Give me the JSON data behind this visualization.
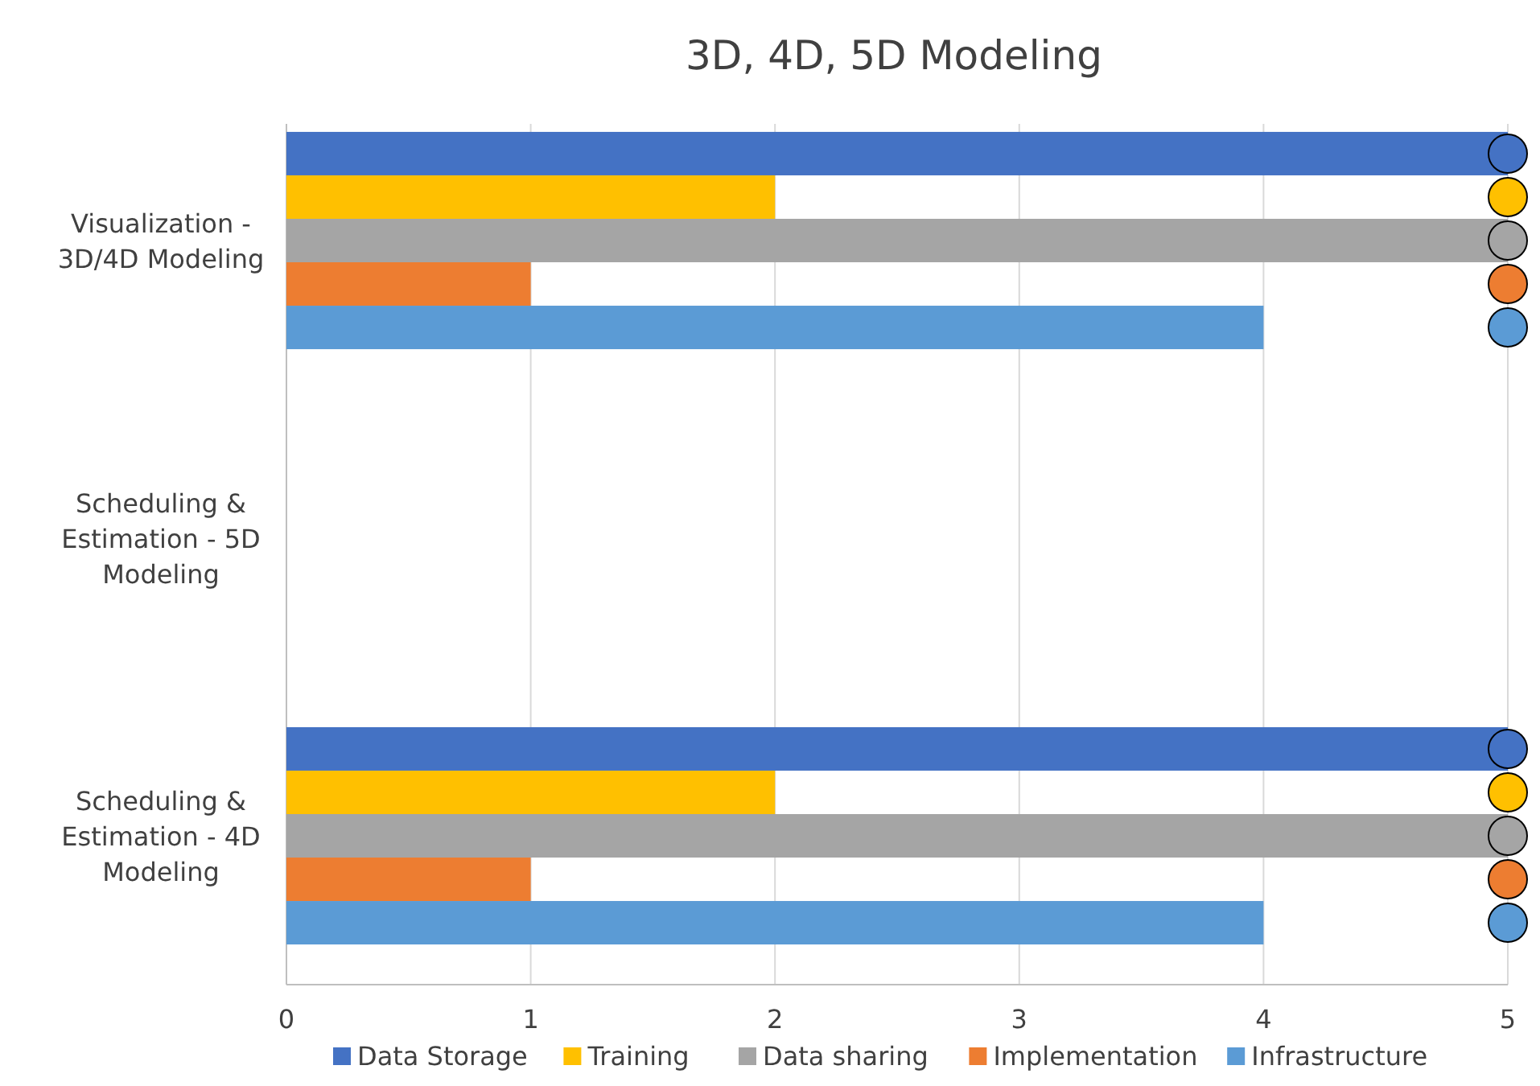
{
  "chart_data": {
    "type": "bar",
    "orientation": "horizontal",
    "title": "3D, 4D, 5D Modeling",
    "categories": [
      "Visualization - 3D/4D Modeling",
      "Scheduling & Estimation - 5D Modeling",
      "Scheduling & Estimation - 4D Modeling"
    ],
    "series": [
      {
        "name": "Data Storage",
        "color": "#4472c4",
        "values": [
          5,
          null,
          5
        ]
      },
      {
        "name": "Training",
        "color": "#ffc000",
        "values": [
          2,
          null,
          2
        ]
      },
      {
        "name": "Data sharing",
        "color": "#a5a5a5",
        "values": [
          5,
          null,
          5
        ]
      },
      {
        "name": "Implementation",
        "color": "#ed7d31",
        "values": [
          1,
          null,
          1
        ]
      },
      {
        "name": "Infrastructure",
        "color": "#5b9bd5",
        "values": [
          4,
          null,
          4
        ]
      },
      {
        "type": "scatter",
        "color": "#4472c4",
        "values": [
          5,
          null,
          5
        ]
      },
      {
        "type": "scatter",
        "color": "#ffc000",
        "values": [
          5,
          null,
          5
        ]
      },
      {
        "type": "scatter",
        "color": "#a5a5a5",
        "values": [
          5,
          null,
          5
        ]
      },
      {
        "type": "scatter",
        "color": "#ed7d31",
        "values": [
          5,
          null,
          5
        ]
      },
      {
        "type": "scatter",
        "color": "#5b9bd5",
        "values": [
          5,
          null,
          5
        ]
      }
    ],
    "xlim": [
      0,
      5
    ],
    "xticks": [
      0,
      1,
      2,
      3,
      4,
      5
    ],
    "grid": "x",
    "legend": "bottom",
    "marker": "circle"
  }
}
